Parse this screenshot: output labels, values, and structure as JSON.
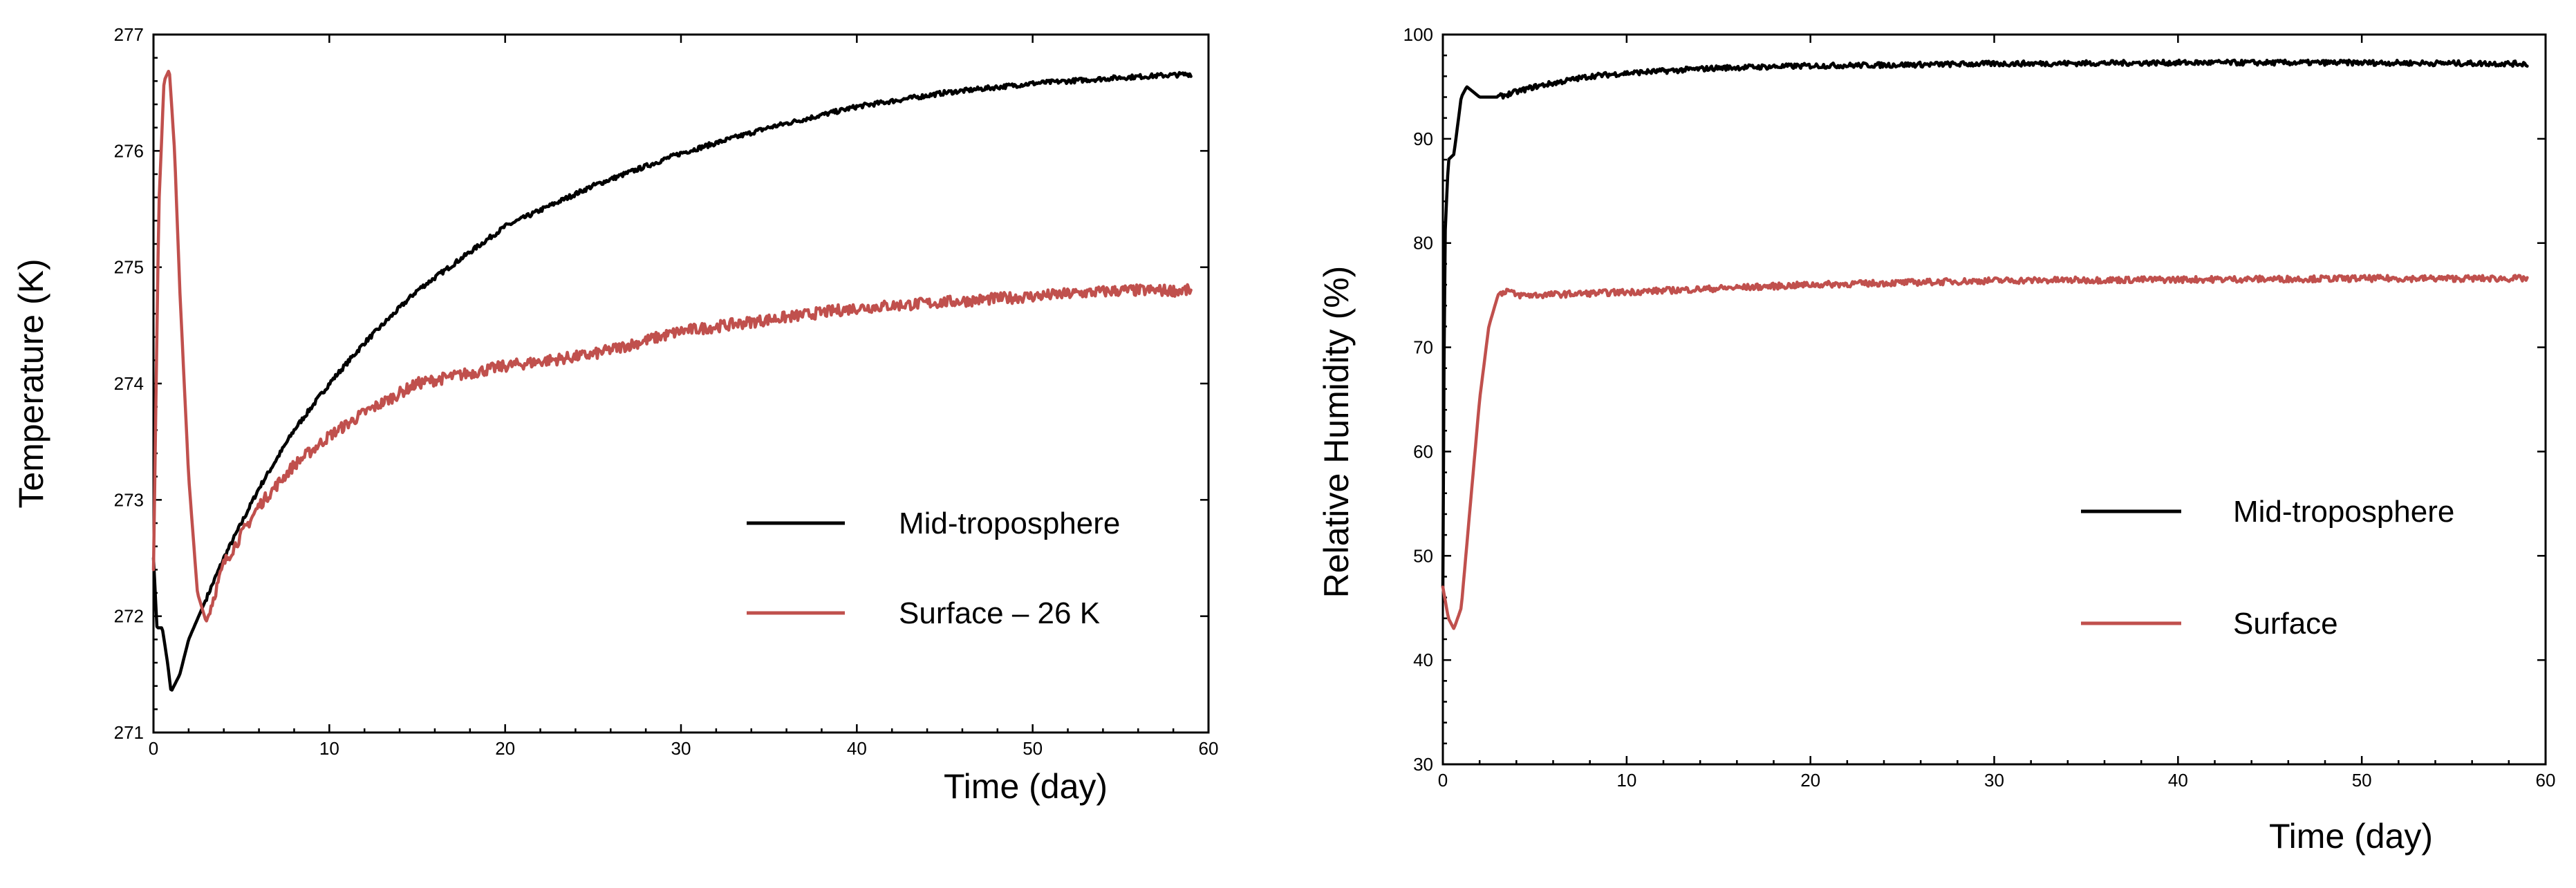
{
  "chart_data": [
    {
      "type": "line",
      "xlabel": "Time (day)",
      "ylabel": "Temperature (K)",
      "xlim": [
        0,
        60
      ],
      "ylim": [
        271,
        277
      ],
      "xticks": [
        0,
        10,
        20,
        30,
        40,
        50,
        60
      ],
      "yticks": [
        271,
        272,
        273,
        274,
        275,
        276,
        277
      ],
      "grid": false,
      "legend_placement": "bottom-right",
      "series": [
        {
          "name": "Mid-troposphere",
          "color": "#000000",
          "noise": 0.02,
          "x": [
            0,
            0.2,
            0.5,
            0.8,
            1.0,
            1.5,
            2.0,
            3,
            4,
            5,
            6,
            8,
            10,
            12,
            15,
            20,
            25,
            30,
            35,
            40,
            45,
            50,
            55,
            59
          ],
          "y": [
            272.5,
            271.9,
            271.9,
            271.6,
            271.35,
            271.5,
            271.8,
            272.15,
            272.5,
            272.8,
            273.1,
            273.6,
            274.0,
            274.35,
            274.8,
            275.35,
            275.7,
            275.98,
            276.2,
            276.38,
            276.5,
            276.58,
            276.63,
            276.66
          ]
        },
        {
          "name": "Surface – 26 K",
          "color": "#c0504d",
          "noise": 0.05,
          "x": [
            0,
            0.3,
            0.6,
            0.9,
            1.2,
            1.5,
            2.0,
            2.5,
            3.0,
            3.5,
            4,
            5,
            6,
            8,
            10,
            12,
            15,
            20,
            25,
            30,
            35,
            40,
            45,
            50,
            55,
            59
          ],
          "y": [
            272.4,
            275.5,
            276.6,
            276.7,
            276.0,
            274.8,
            273.2,
            272.2,
            271.95,
            272.2,
            272.45,
            272.7,
            272.95,
            273.3,
            273.55,
            273.75,
            274.0,
            274.15,
            274.25,
            274.45,
            274.55,
            274.65,
            274.7,
            274.75,
            274.8,
            274.8
          ]
        }
      ]
    },
    {
      "type": "line",
      "xlabel": "Time (day)",
      "ylabel": "Relative Humidity  (%)",
      "xlim": [
        0,
        60
      ],
      "ylim": [
        30,
        100
      ],
      "xticks": [
        0,
        10,
        20,
        30,
        40,
        50,
        60
      ],
      "yticks": [
        30,
        40,
        50,
        60,
        70,
        80,
        90,
        100
      ],
      "grid": false,
      "legend_placement": "bottom-right",
      "series": [
        {
          "name": "Mid-troposphere",
          "color": "#000000",
          "noise": 0.25,
          "x": [
            0,
            0.1,
            0.3,
            0.6,
            1.0,
            1.3,
            2.0,
            3,
            5,
            8,
            10,
            15,
            20,
            30,
            40,
            50,
            59
          ],
          "y": [
            47,
            80,
            88,
            88.5,
            94,
            95,
            94,
            94,
            95,
            96,
            96.3,
            96.8,
            97,
            97.2,
            97.3,
            97.3,
            97.2
          ]
        },
        {
          "name": "Surface",
          "color": "#c0504d",
          "noise": 0.3,
          "x": [
            0,
            0.3,
            0.6,
            1.0,
            1.5,
            2.0,
            2.5,
            3.0,
            3.5,
            4,
            5,
            10,
            20,
            30,
            40,
            50,
            59
          ],
          "y": [
            47,
            44,
            43,
            45,
            55,
            65,
            72,
            75,
            75.5,
            75,
            75,
            75.3,
            76,
            76.4,
            76.5,
            76.6,
            76.6
          ]
        }
      ]
    }
  ]
}
